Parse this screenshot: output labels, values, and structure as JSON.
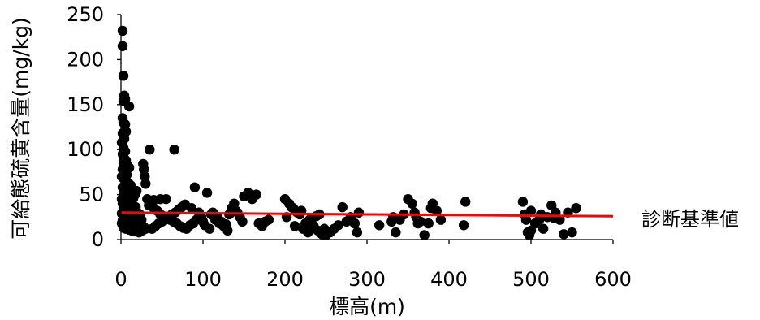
{
  "chart_data": {
    "type": "scatter",
    "title": "",
    "xlabel": "標高(m)",
    "ylabel": "可給態硫黄含量(mg/kg)",
    "xlim": [
      0,
      600
    ],
    "ylim": [
      0,
      250
    ],
    "xticks": [
      "0",
      "100",
      "200",
      "300",
      "400",
      "500",
      "600"
    ],
    "yticks": [
      "0",
      "50",
      "100",
      "150",
      "200",
      "250"
    ],
    "grid": false,
    "marker_color": "#000000",
    "reference_line": {
      "label": "診断基準値",
      "color": "#ff0000",
      "x": [
        0,
        600
      ],
      "y": [
        30,
        26
      ]
    },
    "points": [
      [
        2,
        232
      ],
      [
        2,
        215
      ],
      [
        3,
        182
      ],
      [
        4,
        160
      ],
      [
        5,
        156
      ],
      [
        3,
        154
      ],
      [
        10,
        148
      ],
      [
        2,
        135
      ],
      [
        3,
        130
      ],
      [
        5,
        128
      ],
      [
        6,
        120
      ],
      [
        2,
        118
      ],
      [
        4,
        112
      ],
      [
        1,
        108
      ],
      [
        3,
        102
      ],
      [
        5,
        98
      ],
      [
        2,
        95
      ],
      [
        4,
        90
      ],
      [
        6,
        88
      ],
      [
        3,
        85
      ],
      [
        8,
        82
      ],
      [
        10,
        80
      ],
      [
        2,
        78
      ],
      [
        5,
        75
      ],
      [
        7,
        72
      ],
      [
        1,
        70
      ],
      [
        3,
        68
      ],
      [
        6,
        65
      ],
      [
        9,
        63
      ],
      [
        12,
        60
      ],
      [
        2,
        58
      ],
      [
        4,
        56
      ],
      [
        8,
        55
      ],
      [
        11,
        53
      ],
      [
        14,
        52
      ],
      [
        3,
        50
      ],
      [
        6,
        48
      ],
      [
        9,
        47
      ],
      [
        1,
        45
      ],
      [
        5,
        44
      ],
      [
        7,
        43
      ],
      [
        10,
        42
      ],
      [
        13,
        41
      ],
      [
        2,
        40
      ],
      [
        4,
        39
      ],
      [
        8,
        38
      ],
      [
        15,
        37
      ],
      [
        18,
        36
      ],
      [
        3,
        35
      ],
      [
        6,
        34
      ],
      [
        9,
        33
      ],
      [
        12,
        32
      ],
      [
        16,
        31
      ],
      [
        20,
        30
      ],
      [
        1,
        29
      ],
      [
        4,
        28
      ],
      [
        7,
        27
      ],
      [
        11,
        26
      ],
      [
        14,
        25
      ],
      [
        17,
        24
      ],
      [
        22,
        23
      ],
      [
        25,
        22
      ],
      [
        2,
        21
      ],
      [
        5,
        20
      ],
      [
        8,
        19
      ],
      [
        12,
        18
      ],
      [
        16,
        17
      ],
      [
        20,
        16
      ],
      [
        24,
        15
      ],
      [
        28,
        14
      ],
      [
        3,
        13
      ],
      [
        6,
        12
      ],
      [
        10,
        11
      ],
      [
        13,
        10
      ],
      [
        18,
        9
      ],
      [
        22,
        8
      ],
      [
        26,
        10
      ],
      [
        30,
        12
      ],
      [
        1,
        18
      ],
      [
        3,
        22
      ],
      [
        5,
        26
      ],
      [
        7,
        30
      ],
      [
        9,
        34
      ],
      [
        11,
        38
      ],
      [
        13,
        42
      ],
      [
        15,
        46
      ],
      [
        17,
        50
      ],
      [
        19,
        54
      ],
      [
        21,
        25
      ],
      [
        23,
        28
      ],
      [
        27,
        84
      ],
      [
        28,
        78
      ],
      [
        29,
        70
      ],
      [
        30,
        62
      ],
      [
        35,
        100
      ],
      [
        65,
        100
      ],
      [
        32,
        45
      ],
      [
        36,
        40
      ],
      [
        40,
        35
      ],
      [
        44,
        32
      ],
      [
        48,
        28
      ],
      [
        52,
        26
      ],
      [
        56,
        24
      ],
      [
        60,
        22
      ],
      [
        64,
        20
      ],
      [
        68,
        18
      ],
      [
        72,
        15
      ],
      [
        76,
        13
      ],
      [
        80,
        12
      ],
      [
        84,
        16
      ],
      [
        38,
        12
      ],
      [
        42,
        15
      ],
      [
        46,
        18
      ],
      [
        50,
        20
      ],
      [
        54,
        22
      ],
      [
        58,
        25
      ],
      [
        62,
        28
      ],
      [
        66,
        30
      ],
      [
        70,
        33
      ],
      [
        74,
        36
      ],
      [
        78,
        39
      ],
      [
        55,
        45
      ],
      [
        48,
        45
      ],
      [
        40,
        44
      ],
      [
        34,
        38
      ],
      [
        90,
        58
      ],
      [
        95,
        30
      ],
      [
        98,
        25
      ],
      [
        100,
        20
      ],
      [
        105,
        52
      ],
      [
        110,
        28
      ],
      [
        115,
        22
      ],
      [
        120,
        18
      ],
      [
        125,
        15
      ],
      [
        130,
        10
      ],
      [
        135,
        35
      ],
      [
        138,
        40
      ],
      [
        142,
        30
      ],
      [
        145,
        25
      ],
      [
        148,
        20
      ],
      [
        150,
        48
      ],
      [
        155,
        52
      ],
      [
        160,
        45
      ],
      [
        165,
        50
      ],
      [
        168,
        18
      ],
      [
        172,
        15
      ],
      [
        176,
        20
      ],
      [
        180,
        22
      ],
      [
        140,
        32
      ],
      [
        132,
        28
      ],
      [
        88,
        18
      ],
      [
        92,
        22
      ],
      [
        96,
        26
      ],
      [
        102,
        16
      ],
      [
        108,
        12
      ],
      [
        118,
        24
      ],
      [
        122,
        20
      ],
      [
        128,
        17
      ],
      [
        112,
        30
      ],
      [
        86,
        35
      ],
      [
        200,
        45
      ],
      [
        205,
        40
      ],
      [
        210,
        35
      ],
      [
        215,
        30
      ],
      [
        220,
        32
      ],
      [
        225,
        18
      ],
      [
        230,
        22
      ],
      [
        235,
        15
      ],
      [
        240,
        10
      ],
      [
        245,
        6
      ],
      [
        250,
        5
      ],
      [
        255,
        8
      ],
      [
        260,
        12
      ],
      [
        265,
        16
      ],
      [
        270,
        36
      ],
      [
        275,
        20
      ],
      [
        280,
        25
      ],
      [
        285,
        18
      ],
      [
        288,
        8
      ],
      [
        290,
        30
      ],
      [
        212,
        15
      ],
      [
        218,
        28
      ],
      [
        202,
        25
      ],
      [
        208,
        36
      ],
      [
        222,
        12
      ],
      [
        228,
        8
      ],
      [
        232,
        20
      ],
      [
        238,
        26
      ],
      [
        242,
        28
      ],
      [
        248,
        12
      ],
      [
        315,
        16
      ],
      [
        330,
        20
      ],
      [
        335,
        8
      ],
      [
        340,
        22
      ],
      [
        345,
        28
      ],
      [
        350,
        45
      ],
      [
        355,
        40
      ],
      [
        360,
        25
      ],
      [
        365,
        20
      ],
      [
        370,
        5
      ],
      [
        375,
        18
      ],
      [
        380,
        40
      ],
      [
        385,
        32
      ],
      [
        390,
        22
      ],
      [
        420,
        42
      ],
      [
        418,
        16
      ],
      [
        332,
        25
      ],
      [
        358,
        30
      ],
      [
        378,
        35
      ],
      [
        362,
        18
      ],
      [
        490,
        42
      ],
      [
        492,
        28
      ],
      [
        494,
        22
      ],
      [
        496,
        8
      ],
      [
        498,
        5
      ],
      [
        500,
        10
      ],
      [
        505,
        18
      ],
      [
        510,
        22
      ],
      [
        515,
        12
      ],
      [
        520,
        25
      ],
      [
        525,
        38
      ],
      [
        530,
        30
      ],
      [
        535,
        22
      ],
      [
        540,
        6
      ],
      [
        545,
        30
      ],
      [
        550,
        8
      ],
      [
        555,
        35
      ],
      [
        500,
        32
      ],
      [
        512,
        28
      ],
      [
        528,
        24
      ]
    ]
  }
}
